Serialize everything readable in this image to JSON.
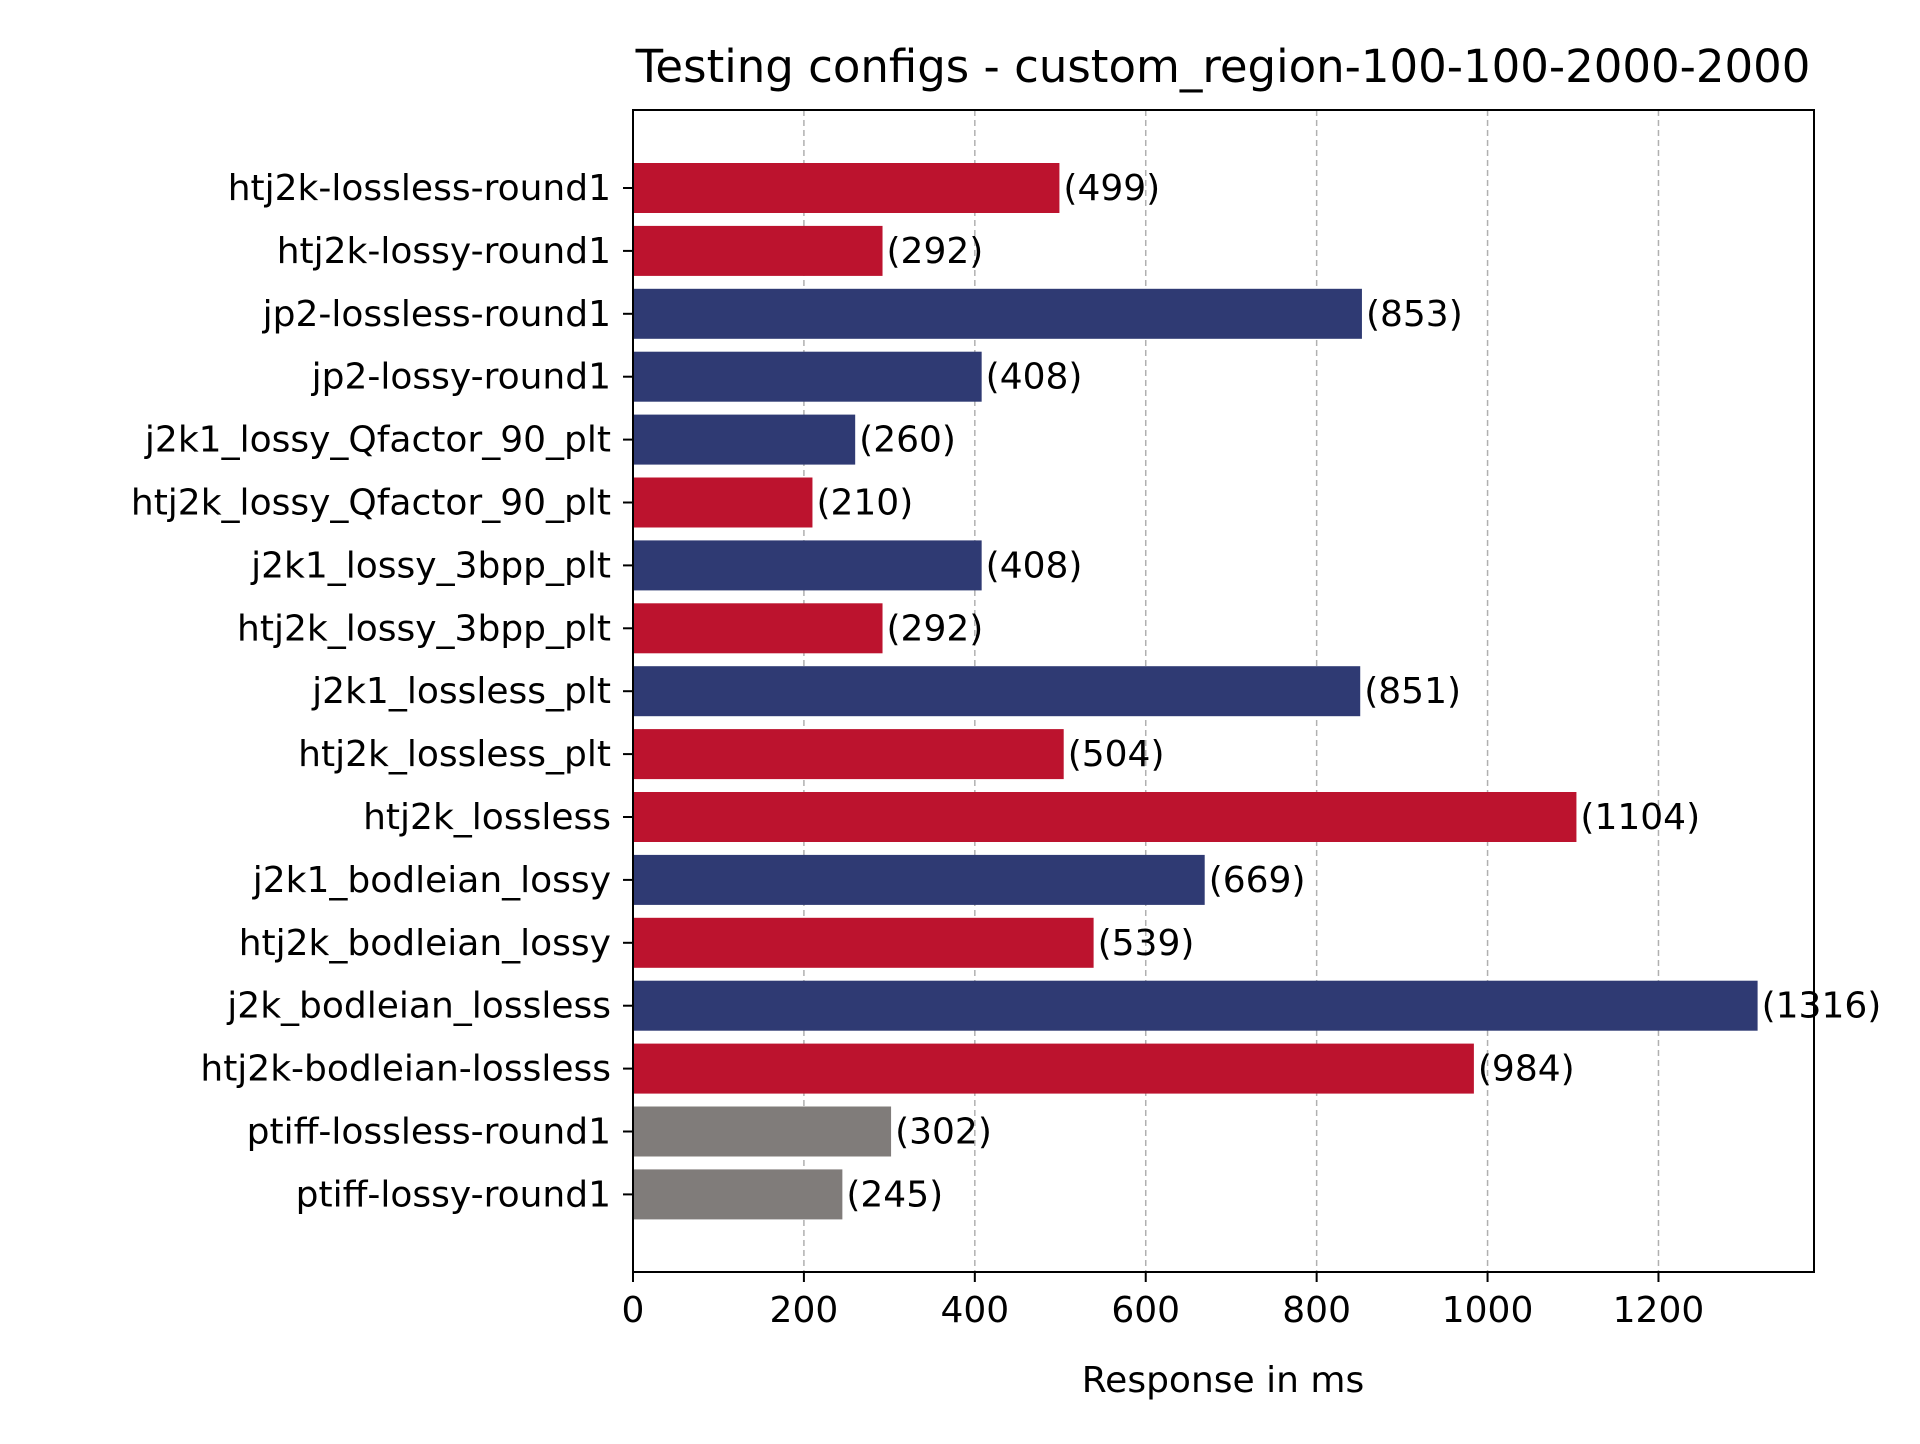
{
  "chart_data": {
    "type": "bar",
    "orientation": "horizontal",
    "title": "Testing configs - custom_region-100-100-2000-2000",
    "xlabel": "Response in ms",
    "ylabel": "",
    "xlim": [
      0,
      1382
    ],
    "xticks": [
      0,
      200,
      400,
      600,
      800,
      1000,
      1200
    ],
    "grid": "vertical-dashed",
    "categories": [
      "htj2k-lossless-round1",
      "htj2k-lossy-round1",
      "jp2-lossless-round1",
      "jp2-lossy-round1",
      "j2k1_lossy_Qfactor_90_plt",
      "htj2k_lossy_Qfactor_90_plt",
      "j2k1_lossy_3bpp_plt",
      "htj2k_lossy_3bpp_plt",
      "j2k1_lossless_plt",
      "htj2k_lossless_plt",
      "htj2k_lossless",
      "j2k1_bodleian_lossy",
      "htj2k_bodleian_lossy",
      "j2k_bodleian_lossless",
      "htj2k-bodleian-lossless",
      "ptiff-lossless-round1",
      "ptiff-lossy-round1"
    ],
    "values": [
      499,
      292,
      853,
      408,
      260,
      210,
      408,
      292,
      851,
      504,
      1104,
      669,
      539,
      1316,
      984,
      302,
      245
    ],
    "value_labels": [
      "(499)",
      "(292)",
      "(853)",
      "(408)",
      "(260)",
      "(210)",
      "(408)",
      "(292)",
      "(851)",
      "(504)",
      "(1104)",
      "(669)",
      "(539)",
      "(1316)",
      "(984)",
      "(302)",
      "(245)"
    ],
    "bar_colors": [
      "#bc132e",
      "#bc132e",
      "#2f3a73",
      "#2f3a73",
      "#2f3a73",
      "#bc132e",
      "#2f3a73",
      "#bc132e",
      "#2f3a73",
      "#bc132e",
      "#bc132e",
      "#2f3a73",
      "#bc132e",
      "#2f3a73",
      "#bc132e",
      "#807c7a",
      "#807c7a"
    ],
    "tick_labels_x": [
      "0",
      "200",
      "400",
      "600",
      "800",
      "1000",
      "1200"
    ]
  }
}
